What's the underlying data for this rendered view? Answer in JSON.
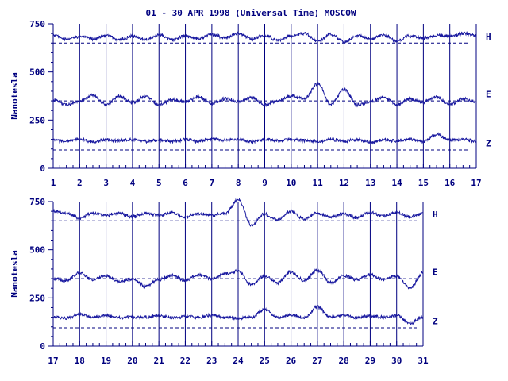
{
  "title": "01 - 30 APR 1998 (Universal Time) MOSCOW",
  "colors": {
    "trace": "#1a1aa0",
    "axis": "#000080",
    "text": "#00007f",
    "background": "#ffffff"
  },
  "chart_data": [
    {
      "type": "line",
      "panel": "top",
      "ylabel": "Nanotesla",
      "ylim": [
        0,
        750
      ],
      "yticks": [
        0,
        250,
        500,
        750
      ],
      "xlim": [
        1,
        17
      ],
      "xticks": [
        1,
        2,
        3,
        4,
        5,
        6,
        7,
        8,
        9,
        10,
        11,
        12,
        13,
        14,
        15,
        16,
        17
      ],
      "grid": "vertical day lines",
      "series": [
        {
          "name": "H",
          "baseline": 650,
          "x": [
            1.0,
            1.5,
            2.0,
            2.5,
            3.0,
            3.5,
            4.0,
            4.5,
            5.0,
            5.5,
            6.0,
            6.5,
            7.0,
            7.5,
            8.0,
            8.5,
            9.0,
            9.5,
            10.0,
            10.5,
            11.0,
            11.5,
            12.0,
            12.5,
            13.0,
            13.5,
            14.0,
            14.5,
            15.0,
            15.5,
            16.0,
            16.5,
            17.0
          ],
          "values": [
            690,
            670,
            685,
            672,
            690,
            668,
            684,
            670,
            692,
            668,
            686,
            675,
            695,
            678,
            700,
            672,
            690,
            665,
            688,
            700,
            660,
            695,
            655,
            690,
            670,
            692,
            660,
            688,
            675,
            690,
            685,
            700,
            690
          ]
        },
        {
          "name": "E",
          "baseline": 350,
          "x": [
            1.0,
            1.5,
            2.0,
            2.5,
            3.0,
            3.5,
            4.0,
            4.5,
            5.0,
            5.5,
            6.0,
            6.5,
            7.0,
            7.5,
            8.0,
            8.5,
            9.0,
            9.5,
            10.0,
            10.5,
            11.0,
            11.5,
            12.0,
            12.5,
            13.0,
            13.5,
            14.0,
            14.5,
            15.0,
            15.5,
            16.0,
            16.5,
            17.0
          ],
          "values": [
            355,
            330,
            345,
            380,
            330,
            375,
            340,
            372,
            330,
            355,
            345,
            372,
            335,
            362,
            345,
            368,
            330,
            350,
            375,
            360,
            440,
            330,
            410,
            330,
            345,
            370,
            330,
            360,
            345,
            370,
            330,
            360,
            345
          ]
        },
        {
          "name": "Z",
          "baseline": 95,
          "x": [
            1.0,
            1.5,
            2.0,
            2.5,
            3.0,
            3.5,
            4.0,
            4.5,
            5.0,
            5.5,
            6.0,
            6.5,
            7.0,
            7.5,
            8.0,
            8.5,
            9.0,
            9.5,
            10.0,
            10.5,
            11.0,
            11.5,
            12.0,
            12.5,
            13.0,
            13.5,
            14.0,
            14.5,
            15.0,
            15.5,
            16.0,
            16.5,
            17.0
          ],
          "values": [
            145,
            140,
            150,
            138,
            148,
            142,
            150,
            140,
            146,
            138,
            150,
            140,
            152,
            145,
            150,
            138,
            148,
            142,
            150,
            145,
            138,
            150,
            140,
            148,
            136,
            148,
            142,
            150,
            140,
            175,
            145,
            150,
            140
          ]
        }
      ]
    },
    {
      "type": "line",
      "panel": "bottom",
      "ylabel": "Nanotesla",
      "ylim": [
        0,
        750
      ],
      "yticks": [
        0,
        250,
        500,
        750
      ],
      "xlim": [
        17,
        31
      ],
      "xticks": [
        17,
        18,
        19,
        20,
        21,
        22,
        23,
        24,
        25,
        26,
        27,
        28,
        29,
        30,
        31
      ],
      "grid": "vertical day lines",
      "series": [
        {
          "name": "H",
          "baseline": 650,
          "x": [
            17.0,
            17.5,
            18.0,
            18.5,
            19.0,
            19.5,
            20.0,
            20.5,
            21.0,
            21.5,
            22.0,
            22.5,
            23.0,
            23.5,
            24.0,
            24.5,
            25.0,
            25.5,
            26.0,
            26.5,
            27.0,
            27.5,
            28.0,
            28.5,
            29.0,
            29.5,
            30.0,
            30.5,
            31.0
          ],
          "values": [
            700,
            690,
            665,
            690,
            680,
            688,
            672,
            690,
            680,
            692,
            670,
            688,
            678,
            690,
            760,
            630,
            685,
            655,
            700,
            660,
            690,
            670,
            688,
            668,
            692,
            675,
            695,
            670,
            690
          ]
        },
        {
          "name": "E",
          "baseline": 350,
          "x": [
            17.0,
            17.5,
            18.0,
            18.5,
            19.0,
            19.5,
            20.0,
            20.5,
            21.0,
            21.5,
            22.0,
            22.5,
            23.0,
            23.5,
            24.0,
            24.5,
            25.0,
            25.5,
            26.0,
            26.5,
            27.0,
            27.5,
            28.0,
            28.5,
            29.0,
            29.5,
            30.0,
            30.5,
            31.0
          ],
          "values": [
            350,
            340,
            380,
            345,
            365,
            335,
            350,
            310,
            345,
            365,
            340,
            370,
            350,
            375,
            390,
            320,
            365,
            330,
            385,
            340,
            395,
            330,
            365,
            345,
            370,
            345,
            365,
            300,
            380
          ]
        },
        {
          "name": "Z",
          "baseline": 95,
          "x": [
            17.0,
            17.5,
            18.0,
            18.5,
            19.0,
            19.5,
            20.0,
            20.5,
            21.0,
            21.5,
            22.0,
            22.5,
            23.0,
            23.5,
            24.0,
            24.5,
            25.0,
            25.5,
            26.0,
            26.5,
            27.0,
            27.5,
            28.0,
            28.5,
            29.0,
            29.5,
            30.0,
            30.5,
            31.0
          ],
          "values": [
            150,
            145,
            165,
            150,
            160,
            148,
            152,
            150,
            158,
            148,
            155,
            150,
            160,
            150,
            145,
            150,
            190,
            148,
            160,
            148,
            205,
            150,
            160,
            148,
            156,
            150,
            160,
            118,
            150
          ]
        }
      ]
    }
  ]
}
